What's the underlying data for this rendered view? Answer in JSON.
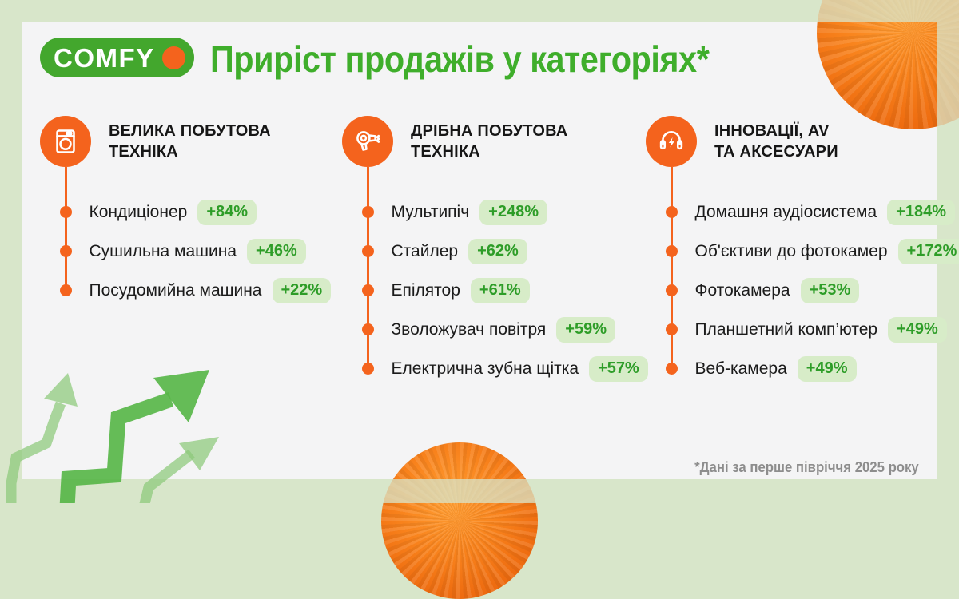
{
  "brand": {
    "logo_text": "COMFY"
  },
  "header": {
    "title": "Приріст продажів у категоріях*"
  },
  "footnote": "*Дані за перше півріччя 2025 року",
  "colors": {
    "background_green": "#d8e6ca",
    "card_bg": "#f4f4f5",
    "brand_green": "#3fae2b",
    "accent_orange": "#f4631d",
    "badge_bg": "#d7ecc8",
    "badge_text": "#2e9d28",
    "arrow_dark_green": "#58b649",
    "arrow_light_green": "#8cc97a",
    "footnote_gray": "#8d8d8d"
  },
  "columns": [
    {
      "icon": "washing-machine-icon",
      "title": "ВЕЛИКА ПОБУТОВА ТЕХНІКА",
      "title_lines": [
        "ВЕЛИКА ПОБУТОВА",
        "ТЕХНІКА"
      ],
      "items": [
        {
          "label": "Кондиціонер",
          "growth": "+84%"
        },
        {
          "label": "Сушильна машина",
          "growth": "+46%"
        },
        {
          "label": "Посудомийна машина",
          "growth": "+22%"
        }
      ]
    },
    {
      "icon": "hair-dryer-icon",
      "title": "ДРІБНА ПОБУТОВА ТЕХНІКА",
      "title_lines": [
        "ДРІБНА ПОБУТОВА",
        "ТЕХНІКА"
      ],
      "items": [
        {
          "label": "Мультипіч",
          "growth": "+248%"
        },
        {
          "label": "Стайлер",
          "growth": "+62%"
        },
        {
          "label": "Епілятор",
          "growth": "+61%"
        },
        {
          "label": "Зволожувач повітря",
          "growth": "+59%"
        },
        {
          "label": "Електрична зубна щітка",
          "growth": "+57%"
        }
      ]
    },
    {
      "icon": "headphones-icon",
      "title": "ІННОВАЦІЇ, AV ТА АКСЕСУАРИ",
      "title_lines": [
        "ІННОВАЦІЇ, AV",
        "ТА АКСЕСУАРИ"
      ],
      "items": [
        {
          "label": "Домашня аудіосистема",
          "growth": "+184%"
        },
        {
          "label": "Об'єктиви до фотокамер",
          "growth": "+172%"
        },
        {
          "label": "Фотокамера",
          "growth": "+53%"
        },
        {
          "label": "Планшетний комп’ютер",
          "growth": "+49%"
        },
        {
          "label": "Веб-камера",
          "growth": "+49%"
        }
      ]
    }
  ],
  "chart_data": {
    "type": "table",
    "title": "Приріст продажів у категоріях",
    "unit": "% приросту продажів",
    "note": "Дані за перше півріччя 2025 року",
    "groups": [
      {
        "category": "Велика побутова техніка",
        "items": [
          {
            "name": "Кондиціонер",
            "growth_pct": 84
          },
          {
            "name": "Сушильна машина",
            "growth_pct": 46
          },
          {
            "name": "Посудомийна машина",
            "growth_pct": 22
          }
        ]
      },
      {
        "category": "Дрібна побутова техніка",
        "items": [
          {
            "name": "Мультипіч",
            "growth_pct": 248
          },
          {
            "name": "Стайлер",
            "growth_pct": 62
          },
          {
            "name": "Епілятор",
            "growth_pct": 61
          },
          {
            "name": "Зволожувач повітря",
            "growth_pct": 59
          },
          {
            "name": "Електрична зубна щітка",
            "growth_pct": 57
          }
        ]
      },
      {
        "category": "Інновації, AV та аксесуари",
        "items": [
          {
            "name": "Домашня аудіосистема",
            "growth_pct": 184
          },
          {
            "name": "Об'єктиви до фотокамер",
            "growth_pct": 172
          },
          {
            "name": "Фотокамера",
            "growth_pct": 53
          },
          {
            "name": "Планшетний комп’ютер",
            "growth_pct": 49
          },
          {
            "name": "Веб-камера",
            "growth_pct": 49
          }
        ]
      }
    ]
  }
}
